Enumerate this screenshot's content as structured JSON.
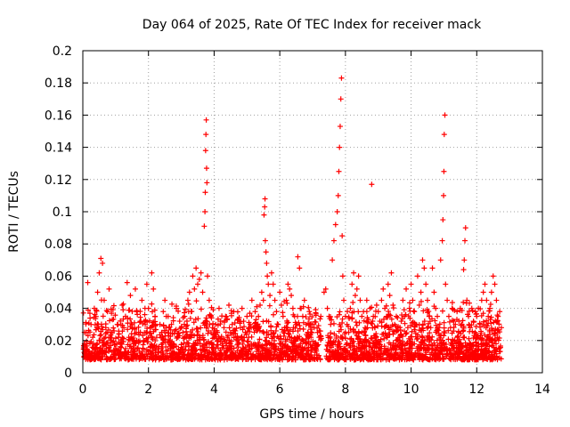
{
  "chart_data": {
    "type": "scatter",
    "title": "Day 064 of 2025, Rate Of TEC Index for receiver mack",
    "xlabel": "GPS time / hours",
    "ylabel": "ROTI / TECUs",
    "xlim": [
      0,
      14
    ],
    "ylim": [
      0,
      0.2
    ],
    "xticks": [
      0,
      2,
      4,
      6,
      8,
      10,
      12,
      14
    ],
    "xtick_labels": [
      "0",
      "2",
      "4",
      "6",
      "8",
      "10",
      "12",
      "14"
    ],
    "yticks": [
      0,
      0.02,
      0.04,
      0.06,
      0.08,
      0.1,
      0.12,
      0.14,
      0.16,
      0.18,
      0.2
    ],
    "ytick_labels": [
      "0",
      "0.02",
      "0.04",
      "0.06",
      "0.08",
      "0.1",
      "0.12",
      "0.14",
      "0.16",
      "0.18",
      "0.2"
    ],
    "grid": true,
    "marker": "plus",
    "marker_color": "#ff0000",
    "series": [
      {
        "name": "ROTI",
        "x": [
          0.05,
          0.1,
          0.15,
          0.2,
          0.25,
          0.3,
          0.35,
          0.4,
          0.45,
          0.5,
          0.55,
          0.6,
          0.65,
          0.7,
          0.75,
          0.8,
          0.85,
          0.9,
          0.95,
          1.0,
          1.05,
          1.1,
          1.15,
          1.2,
          1.25,
          1.3,
          1.35,
          1.4,
          1.45,
          1.5,
          1.55,
          1.6,
          1.65,
          1.7,
          1.75,
          1.8,
          1.85,
          1.9,
          1.95,
          2.0,
          2.05,
          2.1,
          2.15,
          2.2,
          2.25,
          2.3,
          2.35,
          2.4,
          2.45,
          2.5,
          2.55,
          2.6,
          2.65,
          2.7,
          2.75,
          2.8,
          2.85,
          2.9,
          2.95,
          3.0,
          3.05,
          3.1,
          3.15,
          3.2,
          3.25,
          3.3,
          3.35,
          3.4,
          3.45,
          3.5,
          3.55,
          3.6,
          3.65,
          3.7,
          3.72,
          3.73,
          3.74,
          3.75,
          3.76,
          3.77,
          3.78,
          3.8,
          3.85,
          3.9,
          3.95,
          4.0,
          4.05,
          4.1,
          4.15,
          4.2,
          4.25,
          4.3,
          4.35,
          4.4,
          4.45,
          4.5,
          4.55,
          4.6,
          4.65,
          4.7,
          4.75,
          4.8,
          4.85,
          4.9,
          4.95,
          5.0,
          5.05,
          5.1,
          5.15,
          5.2,
          5.25,
          5.3,
          5.35,
          5.4,
          5.45,
          5.5,
          5.52,
          5.54,
          5.55,
          5.56,
          5.58,
          5.6,
          5.62,
          5.65,
          5.7,
          5.75,
          5.8,
          5.85,
          5.9,
          5.95,
          6.0,
          6.05,
          6.1,
          6.15,
          6.2,
          6.25,
          6.3,
          6.35,
          6.4,
          6.45,
          6.5,
          6.55,
          6.6,
          6.65,
          6.7,
          6.75,
          6.8,
          6.85,
          6.9,
          6.95,
          7.0,
          7.05,
          7.1,
          7.15,
          7.2,
          7.25,
          7.35,
          7.4,
          7.45,
          7.5,
          7.55,
          7.6,
          7.65,
          7.7,
          7.75,
          7.78,
          7.8,
          7.82,
          7.84,
          7.86,
          7.88,
          7.9,
          7.92,
          7.95,
          8.0,
          8.05,
          8.1,
          8.15,
          8.2,
          8.25,
          8.3,
          8.35,
          8.4,
          8.45,
          8.5,
          8.55,
          8.6,
          8.65,
          8.7,
          8.75,
          8.8,
          8.85,
          8.9,
          8.95,
          9.0,
          9.05,
          9.1,
          9.15,
          9.2,
          9.25,
          9.3,
          9.35,
          9.4,
          9.45,
          9.5,
          9.55,
          9.6,
          9.65,
          9.7,
          9.75,
          9.8,
          9.85,
          9.9,
          9.95,
          10.0,
          10.05,
          10.1,
          10.15,
          10.2,
          10.25,
          10.3,
          10.35,
          10.4,
          10.45,
          10.5,
          10.55,
          10.6,
          10.65,
          10.7,
          10.75,
          10.8,
          10.85,
          10.9,
          10.95,
          10.97,
          10.99,
          11.0,
          11.01,
          11.03,
          11.05,
          11.1,
          11.15,
          11.2,
          11.25,
          11.3,
          11.35,
          11.4,
          11.45,
          11.5,
          11.55,
          11.6,
          11.62,
          11.64,
          11.66,
          11.7,
          11.75,
          11.8,
          11.85,
          11.9,
          11.95,
          12.0,
          12.05,
          12.1,
          12.15,
          12.2,
          12.25,
          12.3,
          12.35,
          12.4,
          12.45,
          12.5,
          12.55,
          12.6,
          12.65,
          12.7,
          12.75
        ],
        "y": [
          0.018,
          0.025,
          0.056,
          0.012,
          0.03,
          0.022,
          0.04,
          0.015,
          0.05,
          0.062,
          0.071,
          0.068,
          0.045,
          0.028,
          0.038,
          0.052,
          0.02,
          0.033,
          0.026,
          0.015,
          0.03,
          0.024,
          0.018,
          0.042,
          0.028,
          0.035,
          0.056,
          0.022,
          0.048,
          0.03,
          0.018,
          0.052,
          0.038,
          0.025,
          0.032,
          0.045,
          0.02,
          0.03,
          0.055,
          0.04,
          0.028,
          0.062,
          0.052,
          0.035,
          0.022,
          0.015,
          0.03,
          0.025,
          0.038,
          0.045,
          0.028,
          0.035,
          0.02,
          0.03,
          0.018,
          0.026,
          0.04,
          0.022,
          0.032,
          0.028,
          0.025,
          0.035,
          0.022,
          0.045,
          0.05,
          0.038,
          0.06,
          0.052,
          0.065,
          0.055,
          0.058,
          0.062,
          0.05,
          0.091,
          0.1,
          0.112,
          0.138,
          0.148,
          0.157,
          0.127,
          0.118,
          0.06,
          0.045,
          0.035,
          0.028,
          0.022,
          0.03,
          0.025,
          0.04,
          0.032,
          0.018,
          0.028,
          0.035,
          0.022,
          0.042,
          0.025,
          0.03,
          0.038,
          0.026,
          0.02,
          0.033,
          0.028,
          0.04,
          0.032,
          0.025,
          0.035,
          0.022,
          0.03,
          0.045,
          0.028,
          0.038,
          0.026,
          0.035,
          0.042,
          0.05,
          0.045,
          0.098,
          0.103,
          0.108,
          0.082,
          0.075,
          0.068,
          0.06,
          0.055,
          0.048,
          0.062,
          0.055,
          0.045,
          0.038,
          0.03,
          0.05,
          0.042,
          0.035,
          0.028,
          0.045,
          0.055,
          0.052,
          0.048,
          0.04,
          0.035,
          0.03,
          0.072,
          0.065,
          0.04,
          0.035,
          0.045,
          0.03,
          0.025,
          0.038,
          0.022,
          0.03,
          0.028,
          0.018,
          0.025,
          0.022,
          0.035,
          0.05,
          0.052,
          0.04,
          0.035,
          0.03,
          0.07,
          0.082,
          0.092,
          0.1,
          0.11,
          0.125,
          0.14,
          0.153,
          0.17,
          0.183,
          0.085,
          0.06,
          0.045,
          0.035,
          0.03,
          0.025,
          0.04,
          0.055,
          0.062,
          0.048,
          0.052,
          0.06,
          0.045,
          0.035,
          0.038,
          0.028,
          0.045,
          0.033,
          0.04,
          0.117,
          0.035,
          0.028,
          0.042,
          0.038,
          0.032,
          0.045,
          0.052,
          0.04,
          0.035,
          0.055,
          0.048,
          0.062,
          0.042,
          0.03,
          0.035,
          0.028,
          0.022,
          0.032,
          0.045,
          0.035,
          0.052,
          0.028,
          0.04,
          0.055,
          0.045,
          0.038,
          0.03,
          0.06,
          0.042,
          0.05,
          0.07,
          0.065,
          0.055,
          0.045,
          0.035,
          0.028,
          0.065,
          0.05,
          0.04,
          0.035,
          0.028,
          0.07,
          0.082,
          0.095,
          0.11,
          0.125,
          0.148,
          0.16,
          0.055,
          0.045,
          0.035,
          0.028,
          0.04,
          0.032,
          0.03,
          0.038,
          0.025,
          0.04,
          0.03,
          0.064,
          0.07,
          0.082,
          0.09,
          0.045,
          0.035,
          0.028,
          0.04,
          0.032,
          0.025,
          0.035,
          0.04,
          0.03,
          0.045,
          0.05,
          0.055,
          0.045,
          0.035,
          0.04,
          0.05,
          0.06,
          0.055,
          0.045,
          0.035,
          0.038,
          0.028
        ]
      }
    ]
  }
}
